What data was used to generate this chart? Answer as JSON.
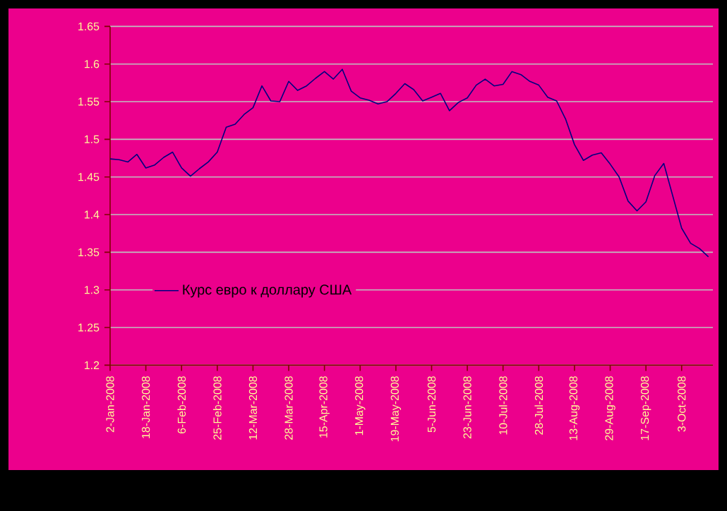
{
  "chart_data": {
    "type": "line",
    "categories": [
      "2-Jan-2008",
      null,
      null,
      null,
      "18-Jan-2008",
      null,
      null,
      null,
      "6-Feb-2008",
      null,
      null,
      null,
      "25-Feb-2008",
      null,
      null,
      null,
      "12-Mar-2008",
      null,
      null,
      null,
      "28-Mar-2008",
      null,
      null,
      null,
      "15-Apr-2008",
      null,
      null,
      null,
      "1-May-2008",
      null,
      null,
      null,
      "19-May-2008",
      null,
      null,
      null,
      "5-Jun-2008",
      null,
      null,
      null,
      "23-Jun-2008",
      null,
      null,
      null,
      "10-Jul-2008",
      null,
      null,
      null,
      "28-Jul-2008",
      null,
      null,
      null,
      "13-Aug-2008",
      null,
      null,
      null,
      "29-Aug-2008",
      null,
      null,
      null,
      "17-Sep-2008",
      null,
      null,
      null,
      "3-Oct-2008",
      null,
      null,
      null
    ],
    "series": [
      {
        "name": "Курс евро к доллару США",
        "color": "#000080",
        "values": [
          1.474,
          1.473,
          1.47,
          1.48,
          1.462,
          1.466,
          1.476,
          1.483,
          1.462,
          1.451,
          1.461,
          1.47,
          1.483,
          1.516,
          1.52,
          1.533,
          1.542,
          1.571,
          1.551,
          1.55,
          1.577,
          1.565,
          1.571,
          1.581,
          1.59,
          1.58,
          1.593,
          1.564,
          1.555,
          1.552,
          1.547,
          1.55,
          1.561,
          1.574,
          1.566,
          1.551,
          1.556,
          1.561,
          1.538,
          1.549,
          1.555,
          1.572,
          1.58,
          1.571,
          1.573,
          1.59,
          1.586,
          1.577,
          1.572,
          1.556,
          1.551,
          1.527,
          1.493,
          1.472,
          1.479,
          1.482,
          1.467,
          1.45,
          1.418,
          1.405,
          1.417,
          1.452,
          1.468,
          1.425,
          1.382,
          1.362,
          1.355,
          1.344
        ]
      }
    ],
    "ylim": [
      1.2,
      1.65
    ],
    "yticks": [
      1.2,
      1.25,
      1.3,
      1.35,
      1.4,
      1.45,
      1.5,
      1.55,
      1.6,
      1.65
    ],
    "grid": "y",
    "legend": "bottom left",
    "marker": "none",
    "line_style": "solid"
  }
}
